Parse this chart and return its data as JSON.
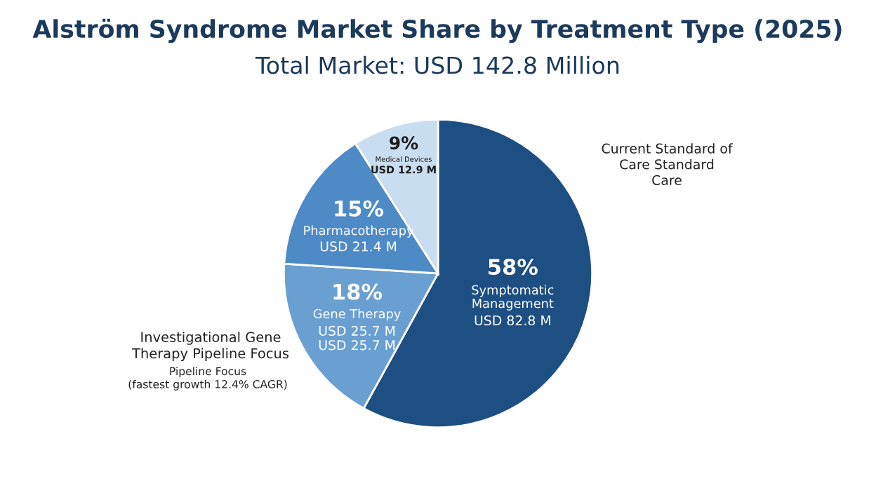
{
  "chart_data": {
    "type": "pie",
    "title": "Alström Syndrome Market Share by Treatment Type (2025)",
    "subtitle": "Total Market: USD 142.8 Million",
    "categories": [
      "Symptomatic\nManagement",
      "Gene Therapy",
      "Pharmacotherapy",
      "Medical Devices"
    ],
    "values": [
      58,
      18,
      15,
      9
    ],
    "colors": [
      "#1d4f82",
      "#6a9fd2",
      "#4e8bc6",
      "#c9ddf1"
    ],
    "value_labels": [
      "58%",
      "18%",
      "15%",
      "9%"
    ],
    "annotations": [
      {
        "text": "USD 82.8 M",
        "x": "Symptomatic\nManagement"
      },
      {
        "text": "USD 25.7 M\nUSD 25.7 M",
        "x": "Gene Therapy"
      },
      {
        "text": "USD 21.4 M",
        "x": "Pharmacotherapy"
      },
      {
        "text": "USD 12.9 M",
        "x": "Medical Devices"
      },
      "Current Standard of\nCare Standard\nCare",
      "Investigational Gene\nTherapy Pipeline Focus",
      "Pipeline Focus\n(fastest growth 12.4% CAGR)"
    ]
  }
}
